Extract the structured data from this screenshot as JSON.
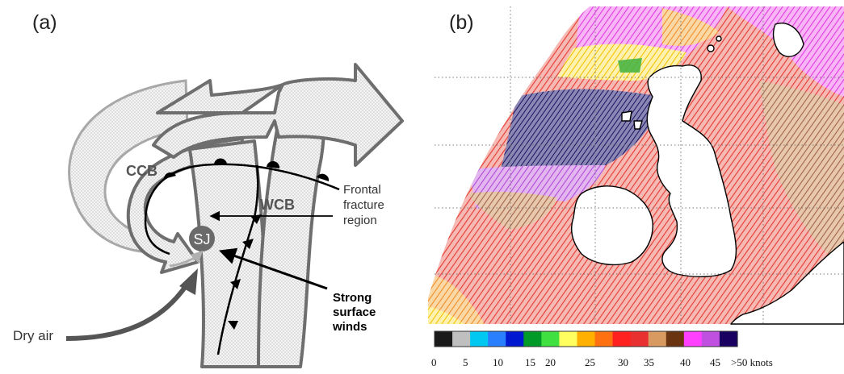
{
  "panel_a": {
    "label": "(a)",
    "labels": {
      "ccb": "CCB",
      "wcb": "WCB",
      "sj": "SJ",
      "frontal_line1": "Frontal",
      "frontal_line2": "fracture",
      "frontal_line3": "region",
      "strong_line1": "Strong",
      "strong_line2": "surface",
      "strong_line3": "winds",
      "dry_air": "Dry air"
    }
  },
  "panel_b": {
    "label": "(b)",
    "colorbar": {
      "ticks": [
        "0",
        "5",
        "10",
        "15",
        "20",
        "25",
        "30",
        "35",
        "40",
        "45",
        ">50 knots"
      ],
      "colors": [
        "#1a1a1a",
        "#bfbfbf",
        "#00c8f0",
        "#2a7fff",
        "#0018d0",
        "#009a28",
        "#40e040",
        "#ffff60",
        "#ffb000",
        "#ff7010",
        "#ff2020",
        "#e83030",
        "#d89a60",
        "#6b3410",
        "#ff40ff",
        "#c050e0",
        "#1a0060"
      ]
    }
  }
}
